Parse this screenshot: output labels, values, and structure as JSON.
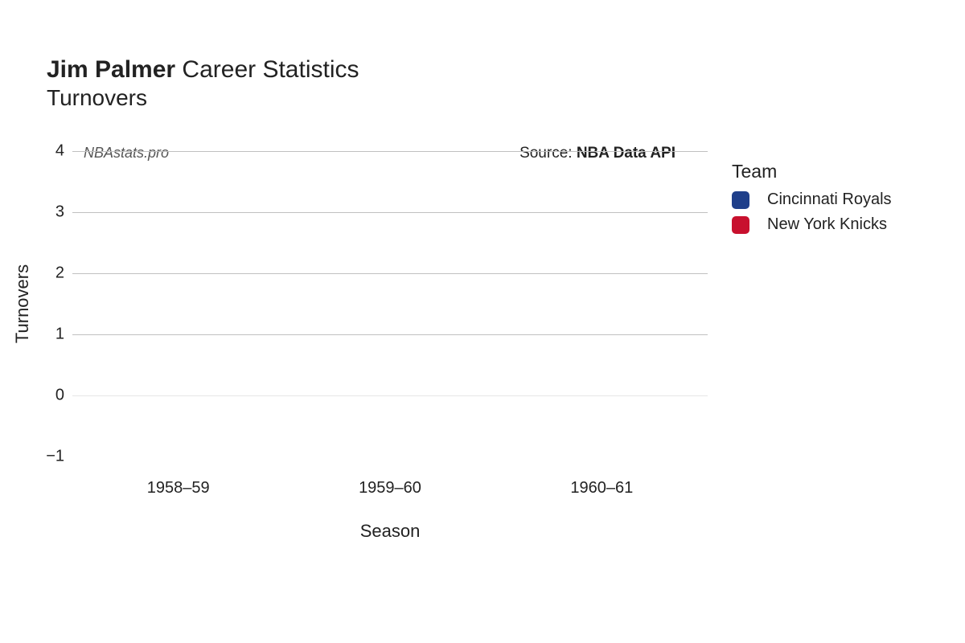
{
  "title": {
    "player": "Jim Palmer",
    "suffix": " Career Statistics",
    "subtitle": "Turnovers",
    "title_fontsize": 30,
    "subtitle_fontsize": 28
  },
  "chart": {
    "type": "bar",
    "background_color": "#ffffff",
    "grid_color_light": "#e6e6e6",
    "grid_color_medium": "#c0c0c0",
    "y_axis": {
      "label": "Turnovers",
      "ticks": [
        -1,
        0,
        1,
        2,
        3,
        4
      ],
      "min": -1,
      "max": 4,
      "label_fontsize": 22,
      "tick_fontsize": 20
    },
    "x_axis": {
      "label": "Season",
      "categories": [
        "1958–59",
        "1959–60",
        "1960–61"
      ],
      "label_fontsize": 22,
      "tick_fontsize": 20
    },
    "watermark": {
      "text": "NBAstats.pro",
      "fontsize": 18,
      "color": "#555555",
      "font_style": "italic"
    },
    "source": {
      "prefix": "Source: ",
      "value": "NBA Data API",
      "fontsize": 19
    }
  },
  "legend": {
    "title": "Team",
    "title_fontsize": 23,
    "label_fontsize": 20,
    "items": [
      {
        "label": "Cincinnati Royals",
        "color": "#1f3f8a"
      },
      {
        "label": "New York Knicks",
        "color": "#c8102e"
      }
    ]
  }
}
